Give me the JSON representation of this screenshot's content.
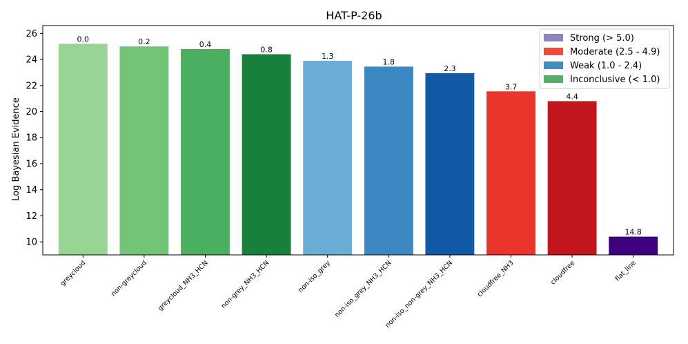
{
  "chart_data": {
    "type": "bar",
    "title": "HAT-P-26b",
    "xlabel": "",
    "ylabel": "Log Bayesian Evidence",
    "ylim": [
      9,
      26.6
    ],
    "yticks": [
      10,
      12,
      14,
      16,
      18,
      20,
      22,
      24,
      26
    ],
    "grid": false,
    "categories": [
      "greycloud",
      "non-greycloud",
      "greycloud_NH3_HCN",
      "non-grey_NH3_HCN",
      "non-iso_grey",
      "non-iso_grey_NH3_HCN",
      "non-iso_non-grey_NH3_HCN",
      "cloudfree_NH3",
      "cloudfree",
      "flat_line"
    ],
    "values": [
      25.2,
      25.0,
      24.8,
      24.4,
      23.9,
      23.45,
      22.95,
      21.55,
      20.8,
      10.4
    ],
    "data_labels": [
      "0.0",
      "0.2",
      "0.4",
      "0.8",
      "1.3",
      "1.8",
      "2.3",
      "3.7",
      "4.4",
      "14.8"
    ],
    "colors": [
      "#98d493",
      "#73c476",
      "#4aaf5f",
      "#18803c",
      "#6aaed6",
      "#3b88c3",
      "#105ba4",
      "#ea362a",
      "#c1161c",
      "#3f017f"
    ],
    "legend": {
      "position": "top-right",
      "entries": [
        {
          "label": "Strong (> 5.0)",
          "color": "#8a84bf"
        },
        {
          "label": "Moderate (2.5 - 4.9)",
          "color": "#f04a3c"
        },
        {
          "label": "Weak (1.0 - 2.4)",
          "color": "#3f8fc5"
        },
        {
          "label": "Inconclusive (< 1.0)",
          "color": "#52b163"
        }
      ]
    }
  }
}
